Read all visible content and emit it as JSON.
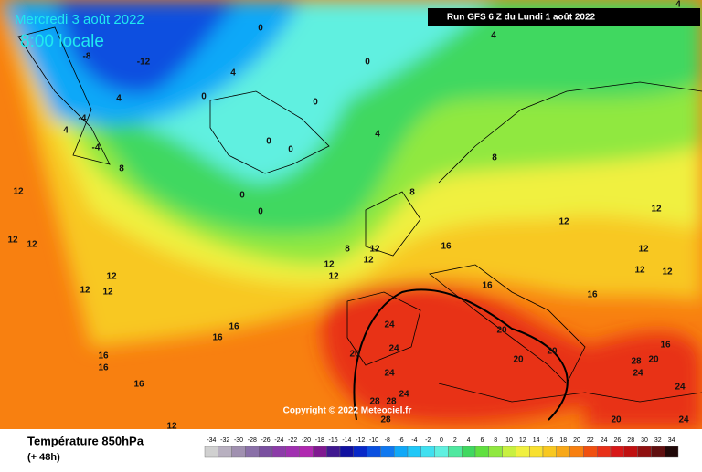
{
  "header": {
    "date": "Mercredi 3 août 2022",
    "time": "8:00 locale",
    "run": "Run GFS 6 Z du Lundi 1 août 2022",
    "copyright": "Copyright © 2022 Meteociel.fr"
  },
  "footer": {
    "title": "Température 850hPa",
    "lead": "(+ 48h)"
  },
  "colorbar": {
    "labels": [
      -34,
      -32,
      -30,
      -28,
      -26,
      -24,
      -22,
      -20,
      -18,
      -16,
      -14,
      -12,
      -10,
      -8,
      -6,
      -4,
      -2,
      0,
      2,
      4,
      6,
      8,
      10,
      12,
      14,
      16,
      18,
      20,
      22,
      24,
      26,
      28,
      30,
      32,
      34
    ],
    "colors": [
      "#d0d0d0",
      "#b8b0c0",
      "#a090b0",
      "#8a70a8",
      "#7a50a0",
      "#8c3ca8",
      "#a030b0",
      "#b028b0",
      "#801890",
      "#401890",
      "#1010a0",
      "#0828c8",
      "#0a50e0",
      "#1078f0",
      "#10a8f8",
      "#20c8f8",
      "#40e0f0",
      "#60f0e0",
      "#50e8a0",
      "#40d860",
      "#60e040",
      "#90e840",
      "#c8f040",
      "#f0f040",
      "#f8e030",
      "#f8c820",
      "#f8a818",
      "#f88010",
      "#f05010",
      "#e83018",
      "#d81818",
      "#c01010",
      "#901010",
      "#601010",
      "#200808"
    ]
  },
  "map_labels": [
    -8,
    -12,
    4,
    -4,
    -4,
    4,
    8,
    12,
    12,
    12,
    12,
    12,
    12,
    16,
    16,
    16,
    16,
    16,
    12,
    4,
    0,
    0,
    0,
    0,
    0,
    0,
    0,
    4,
    8,
    8,
    8,
    12,
    12,
    12,
    12,
    16,
    16,
    12,
    16,
    12,
    12,
    12,
    12,
    24,
    24,
    20,
    24,
    20,
    20,
    20,
    24,
    28,
    28,
    28,
    20,
    28,
    24,
    16,
    20,
    24,
    24,
    4,
    4,
    0
  ]
}
